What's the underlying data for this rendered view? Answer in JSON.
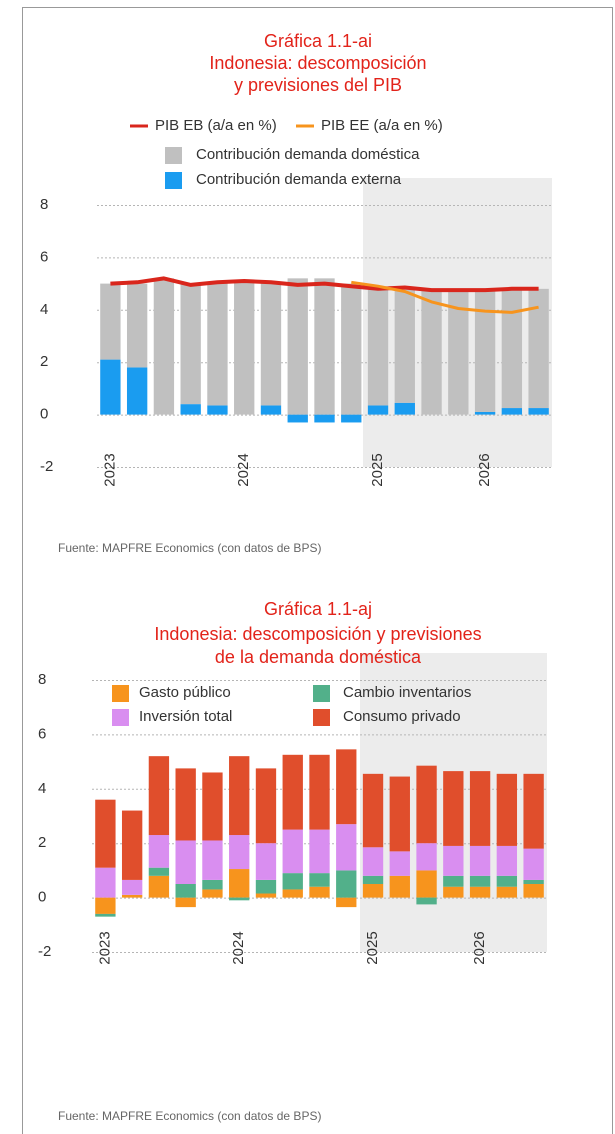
{
  "chart_data": [
    {
      "type": "combo",
      "title": [
        "Gráfica 1.1-ai",
        "Indonesia: descomposición",
        "y previsiones del PIB"
      ],
      "categories": [
        "2023",
        null,
        null,
        null,
        null,
        "2024",
        null,
        null,
        null,
        null,
        "2025",
        null,
        null,
        null,
        "2026",
        null,
        null
      ],
      "ylim": [
        -2,
        8
      ],
      "yticks": [
        -2,
        0,
        2,
        4,
        6,
        8
      ],
      "grid": true,
      "series": [
        {
          "name": "PIB EB (a/a en %)",
          "kind": "line",
          "color": "#d9261c",
          "values": [
            5.0,
            5.05,
            5.2,
            4.95,
            5.05,
            5.1,
            5.05,
            4.95,
            5.0,
            4.9,
            4.8,
            4.85,
            4.75,
            4.75,
            4.75,
            4.8,
            4.8
          ]
        },
        {
          "name": "PIB EE (a/a en %)",
          "kind": "line",
          "color": "#f7941d",
          "values": [
            null,
            null,
            null,
            null,
            null,
            null,
            null,
            null,
            null,
            5.05,
            4.9,
            4.7,
            4.3,
            4.05,
            3.95,
            3.9,
            4.1
          ]
        },
        {
          "name": "Contribución demanda doméstica",
          "kind": "bar",
          "color": "#c0c0c0",
          "values": [
            2.9,
            3.2,
            5.2,
            4.6,
            4.7,
            5.1,
            4.7,
            5.2,
            5.2,
            5.0,
            4.45,
            4.4,
            4.8,
            4.8,
            4.7,
            4.55,
            4.55
          ]
        },
        {
          "name": "Contribución demanda externa",
          "kind": "bar",
          "color": "#1a9cf0",
          "values": [
            2.1,
            1.8,
            0,
            0.4,
            0.35,
            0,
            0.35,
            -0.3,
            -0.3,
            -0.3,
            0.35,
            0.45,
            0,
            0,
            0.1,
            0.25,
            0.25
          ]
        }
      ],
      "source": "Fuente: MAPFRE Economics (con datos de BPS)"
    },
    {
      "type": "stacked_bar",
      "title": [
        "Gráfica 1.1-aj",
        "Indonesia: descomposición y previsiones",
        "de la demanda doméstica"
      ],
      "categories": [
        "2023",
        null,
        null,
        null,
        null,
        "2024",
        null,
        null,
        null,
        null,
        "2025",
        null,
        null,
        null,
        "2026",
        null,
        null
      ],
      "ylim": [
        -2,
        8
      ],
      "yticks": [
        -2,
        0,
        2,
        4,
        6,
        8
      ],
      "grid": true,
      "series": [
        {
          "name": "Gasto público",
          "color": "#f7941d",
          "values": [
            -0.6,
            0.1,
            0.8,
            -0.35,
            0.3,
            1.05,
            0.15,
            0.3,
            0.4,
            -0.35,
            0.5,
            0.8,
            1.0,
            0.4,
            0.4,
            0.4,
            0.5
          ]
        },
        {
          "name": "Cambio inventarios",
          "color": "#52b08a",
          "values": [
            -0.1,
            0,
            0.3,
            0.5,
            0.35,
            -0.1,
            0.5,
            0.6,
            0.5,
            1.0,
            0.3,
            0,
            -0.25,
            0.4,
            0.4,
            0.4,
            0.15
          ]
        },
        {
          "name": "Inversión total",
          "color": "#d98ef0",
          "values": [
            1.1,
            0.55,
            1.2,
            1.6,
            1.45,
            1.25,
            1.35,
            1.6,
            1.6,
            1.7,
            1.05,
            0.9,
            1.0,
            1.1,
            1.1,
            1.1,
            1.15
          ]
        },
        {
          "name": "Consumo privado",
          "color": "#e04e2c",
          "values": [
            2.5,
            2.55,
            2.9,
            2.65,
            2.5,
            2.9,
            2.75,
            2.75,
            2.75,
            2.75,
            2.7,
            2.75,
            2.85,
            2.75,
            2.75,
            2.65,
            2.75
          ]
        }
      ],
      "source": "Fuente: MAPFRE Economics (con datos de BPS)"
    }
  ]
}
